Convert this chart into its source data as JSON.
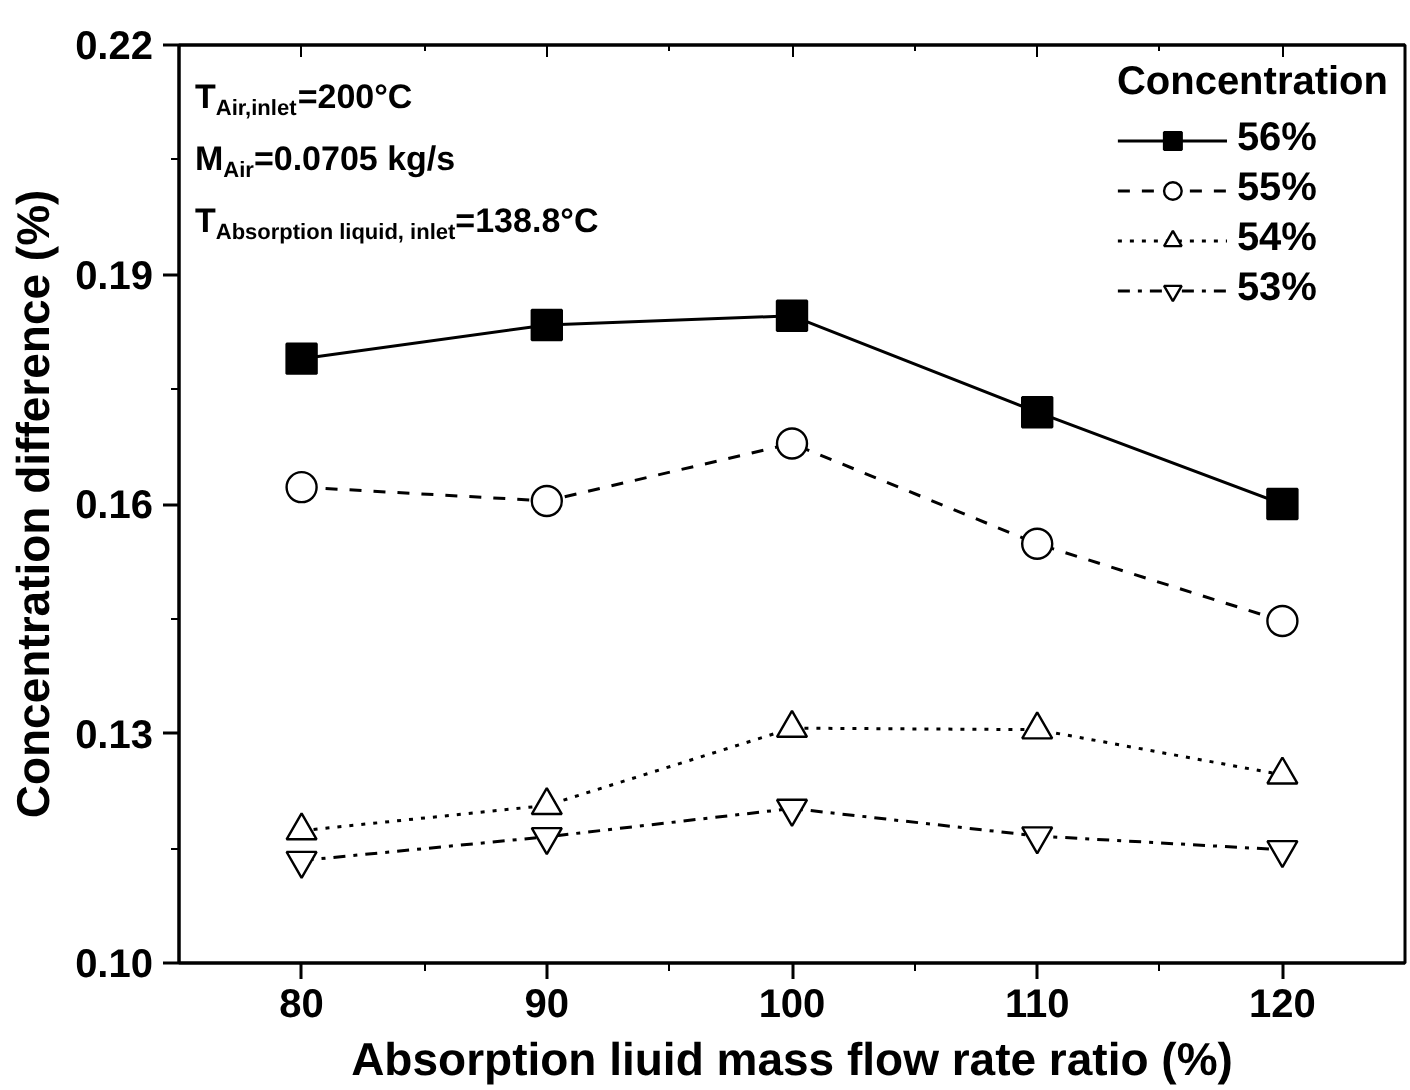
{
  "chart_data": {
    "type": "line",
    "xlabel": "Absorption liuid mass flow rate ratio (%)",
    "ylabel": "Concentration difference (%)",
    "legend_title": "Concentration",
    "legend": "top right",
    "grid": false,
    "x": [
      80,
      90,
      100,
      110,
      120
    ],
    "xlim": [
      75,
      125
    ],
    "xticks": [
      80,
      {
        "value": 85,
        "label": null
      },
      90,
      {
        "value": 95,
        "label": null
      },
      100,
      {
        "value": 105,
        "label": null
      },
      110,
      {
        "value": 115,
        "label": null
      },
      120
    ],
    "ylim": [
      0.1,
      0.22
    ],
    "yticks": [
      {
        "value": 0.1,
        "label": "0.10"
      },
      {
        "value": 0.115,
        "label": null
      },
      0.13,
      {
        "value": 0.145,
        "label": null
      },
      0.16,
      {
        "value": 0.175,
        "label": null
      },
      0.19,
      {
        "value": 0.205,
        "label": null
      },
      0.22
    ],
    "annotations": [
      "T$_{Air,inlet}$=200°C",
      "M$_{Air}$=0.0705 kg/s",
      "T$_{Absorption liquid, inlet}$=138.8°C"
    ],
    "series": [
      {
        "name": "56%",
        "color": "#000000",
        "marker": "square",
        "line_style": "solid",
        "values": [
          0.179,
          0.1834,
          0.1846,
          0.172,
          0.16
        ]
      },
      {
        "name": "55%",
        "color": "#000000",
        "marker": "circle",
        "line_style": "dashed",
        "values": [
          0.1622,
          0.1604,
          0.1679,
          0.1548,
          0.1447
        ]
      },
      {
        "name": "54%",
        "color": "#000000",
        "marker": "triangle",
        "line_style": "dotted",
        "values": [
          0.1173,
          0.1206,
          0.1307,
          0.1305,
          0.1246
        ]
      },
      {
        "name": "53%",
        "color": "#000000",
        "marker": "triangle_down",
        "line_style": "dashdot",
        "values": [
          0.1134,
          0.1165,
          0.1202,
          0.1166,
          0.1148
        ]
      }
    ]
  }
}
